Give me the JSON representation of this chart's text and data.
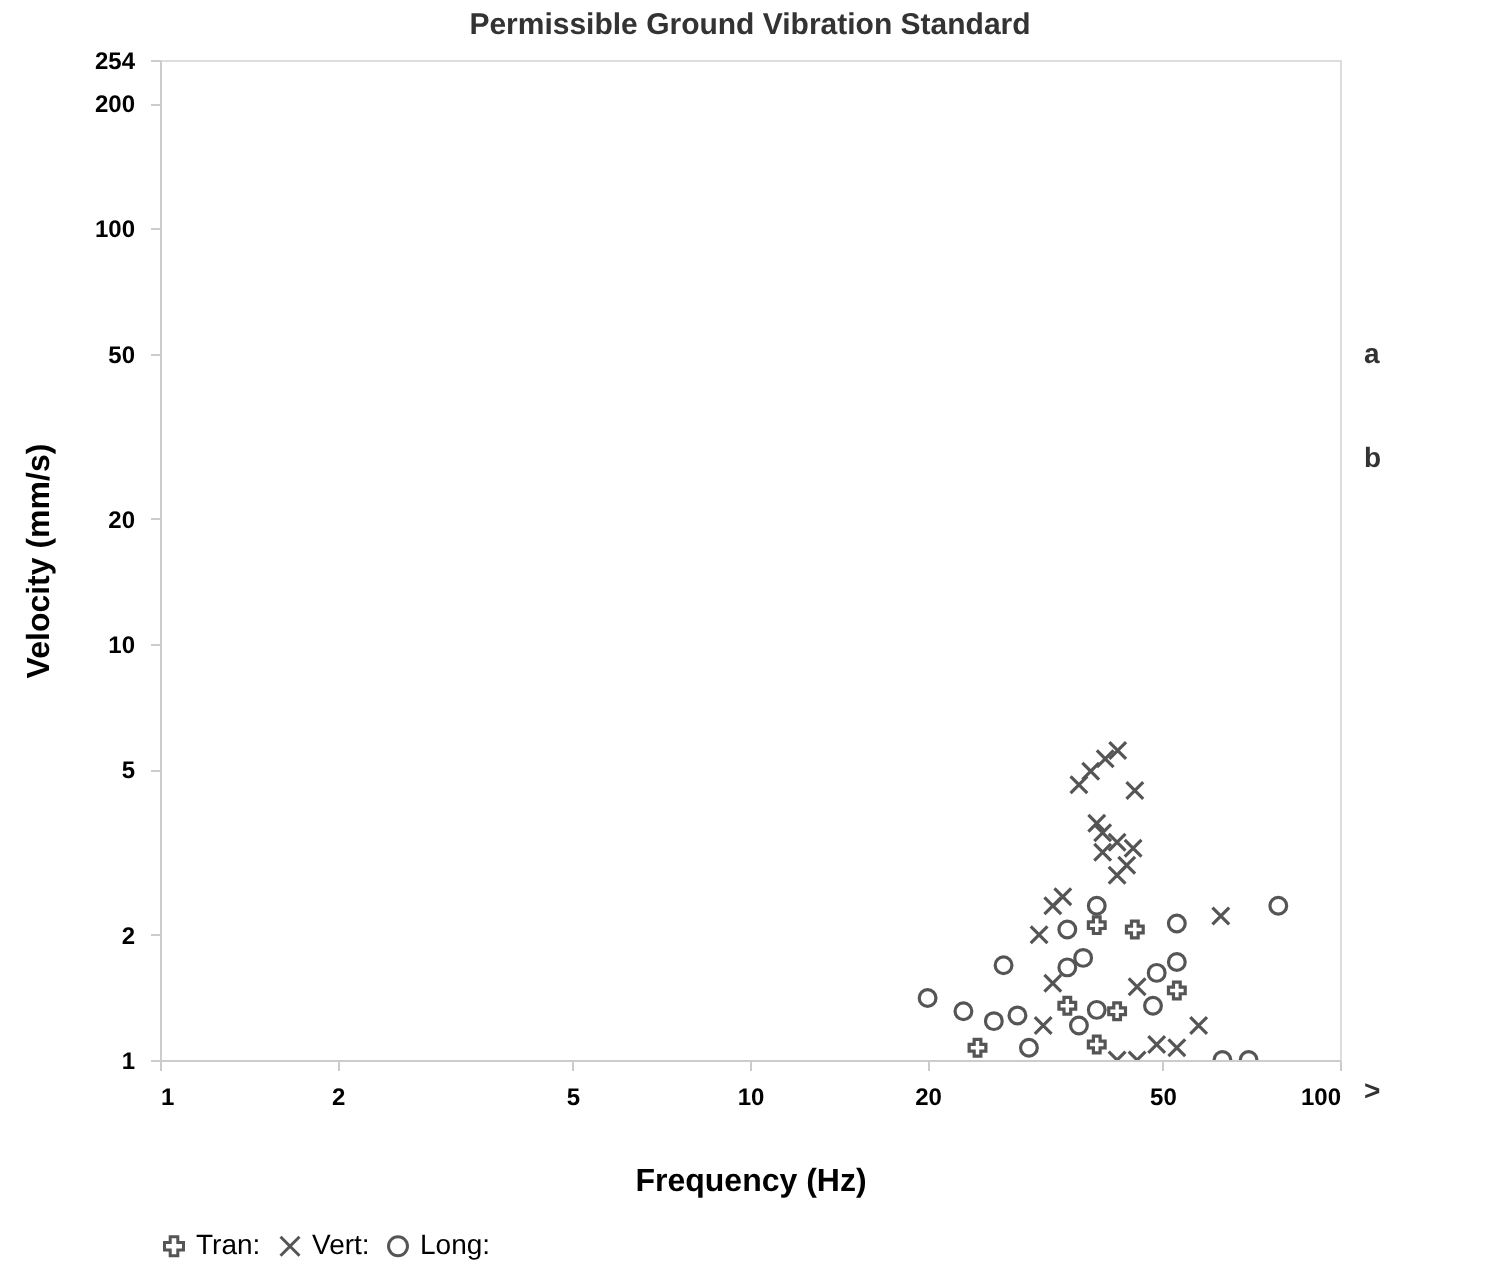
{
  "chart_data": {
    "type": "scatter",
    "title": "Permissible Ground Vibration Standard",
    "xlabel": "Frequency (Hz)",
    "ylabel": "Velocity (mm/s)",
    "log": "xy",
    "xlim": [
      1,
      100
    ],
    "xticks": [
      1,
      2,
      5,
      10,
      20,
      50,
      100
    ],
    "ylim": [
      1,
      254
    ],
    "yticks": [
      1,
      2,
      5,
      10,
      20,
      50,
      100,
      200,
      254
    ],
    "grid": false,
    "legend": "bottom",
    "annotations": [
      ">",
      "a",
      "b"
    ],
    "series": [
      {
        "name": "Tran:",
        "marker": "cross",
        "color": "#555555",
        "x": [
          44.9,
          38.7,
          24.3,
          38.7,
          41.9,
          52.9,
          34.5
        ],
        "values": [
          2.06,
          2.11,
          1.07,
          1.09,
          1.31,
          1.47,
          1.35
        ]
      },
      {
        "name": "Vert:",
        "marker": "x",
        "color": "#555555",
        "x": [
          36.1,
          37.8,
          40.0,
          42.0,
          44.9,
          38.7,
          39.6,
          41.9,
          44.6,
          43.5,
          41.9,
          39.6,
          32.6,
          33.9,
          30.9,
          62.8,
          32.6,
          45.3,
          57.6,
          31.4,
          48.9,
          52.9,
          41.9,
          45.3
        ],
        "values": [
          4.59,
          4.95,
          5.3,
          5.55,
          4.45,
          3.71,
          3.52,
          3.34,
          3.23,
          2.94,
          2.78,
          3.16,
          2.35,
          2.47,
          2.0,
          2.22,
          1.53,
          1.5,
          1.21,
          1.21,
          1.09,
          1.07,
          1.0,
          1.0
        ]
      },
      {
        "name": "Long:",
        "marker": "circle",
        "color": "#555555",
        "x": [
          20.0,
          23.0,
          25.9,
          28.4,
          29.7,
          26.9,
          34.5,
          38.7,
          52.9,
          78.6,
          34.5,
          36.7,
          48.9,
          52.9,
          38.7,
          36.1,
          48.2,
          63.2,
          70.0
        ],
        "values": [
          1.41,
          1.31,
          1.24,
          1.28,
          1.07,
          1.69,
          2.06,
          2.35,
          2.13,
          2.35,
          1.67,
          1.76,
          1.62,
          1.72,
          1.32,
          1.21,
          1.35,
          1.0,
          1.0
        ]
      }
    ]
  }
}
